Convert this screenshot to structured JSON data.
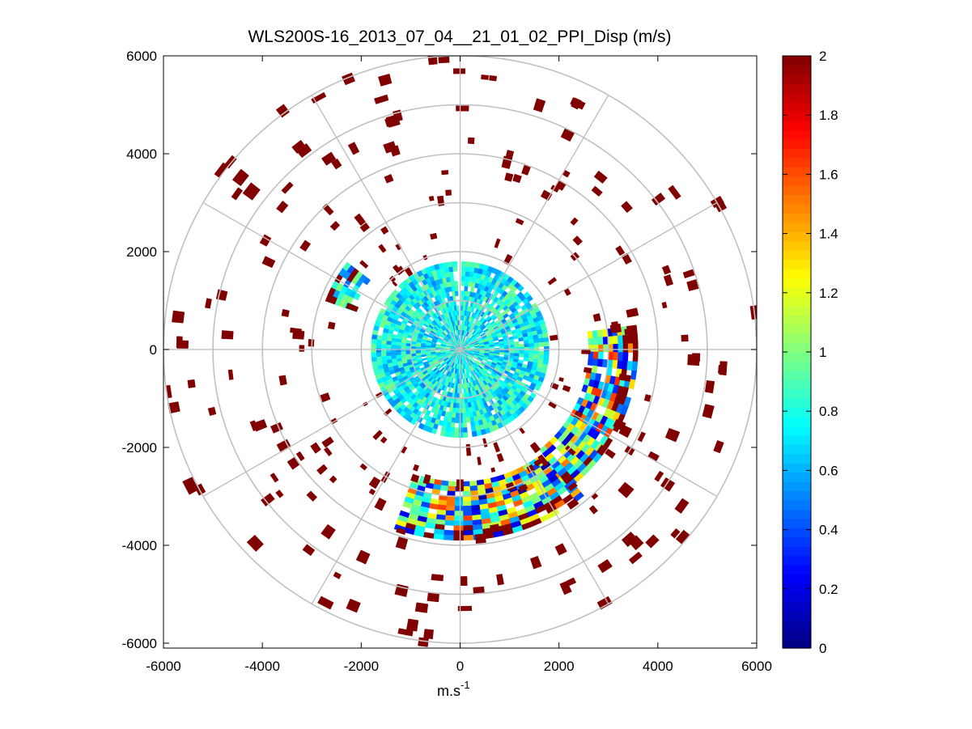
{
  "chart_data": {
    "type": "heatmap",
    "subtype": "polar-ppi-scan",
    "title": "WLS200S-16_2013_07_04__21_01_02_PPI_Disp (m/s)",
    "xlabel_base": "m.s",
    "xlabel_exponent": "-1",
    "ylabel": "",
    "xlim": [
      -6000,
      6000
    ],
    "ylim": [
      -6100,
      6000
    ],
    "xticks": [
      -6000,
      -4000,
      -2000,
      0,
      2000,
      4000,
      6000
    ],
    "xtick_labels": [
      "-6000",
      "-4000",
      "-2000",
      "0",
      "2000",
      "4000",
      "6000"
    ],
    "yticks": [
      -6000,
      -4000,
      -2000,
      0,
      2000,
      4000,
      6000
    ],
    "ytick_labels": [
      "-6000",
      "-4000",
      "-2000",
      "0",
      "2000",
      "4000",
      "6000"
    ],
    "polar_grid": {
      "range_rings": [
        1000,
        2000,
        3000,
        4000,
        5000,
        6000
      ],
      "spoke_angles_deg": [
        0,
        30,
        60,
        90,
        120,
        150,
        180,
        210,
        240,
        270,
        300,
        330
      ]
    },
    "colorbar": {
      "colormap": "jet",
      "clim": [
        0,
        2
      ],
      "ticks": [
        0,
        0.2,
        0.4,
        0.6,
        0.8,
        1,
        1.2,
        1.4,
        1.6,
        1.8,
        2
      ],
      "tick_labels": [
        "0",
        "0.2",
        "0.4",
        "0.6",
        "0.8",
        "1",
        "1.2",
        "1.4",
        "1.6",
        "1.8",
        "2"
      ]
    },
    "regions": [
      {
        "name": "near-field disk",
        "r_min": 0,
        "r_max": 1800,
        "az_start": -8,
        "az_end": 352,
        "value_mean": 0.75,
        "value_spread": 0.25,
        "coverage": 0.92
      },
      {
        "name": "gap wedge",
        "r_min": 0,
        "r_max": 1800,
        "az_start": -2,
        "az_end": 6,
        "value_mean": null,
        "value_spread": 0,
        "coverage": 0
      },
      {
        "name": "southern arc",
        "r_min": 2700,
        "r_max": 3900,
        "az_start": 140,
        "az_end": 200,
        "value_mean": 0.85,
        "value_spread": 0.8,
        "coverage": 0.95
      },
      {
        "name": "eastern arc",
        "r_min": 2600,
        "r_max": 3600,
        "az_start": 82,
        "az_end": 140,
        "value_mean": 0.9,
        "value_spread": 0.8,
        "coverage": 0.9
      },
      {
        "name": "northwest patch",
        "r_min": 2300,
        "r_max": 2900,
        "az_start": 290,
        "az_end": 308,
        "value_mean": 0.75,
        "value_spread": 0.35,
        "coverage": 0.85
      }
    ],
    "far_field_sparse": {
      "value": 2,
      "r_min": 1800,
      "r_max": 6000,
      "density": "sparse",
      "note": "scattered saturated (>=2 m/s) range gates"
    }
  }
}
